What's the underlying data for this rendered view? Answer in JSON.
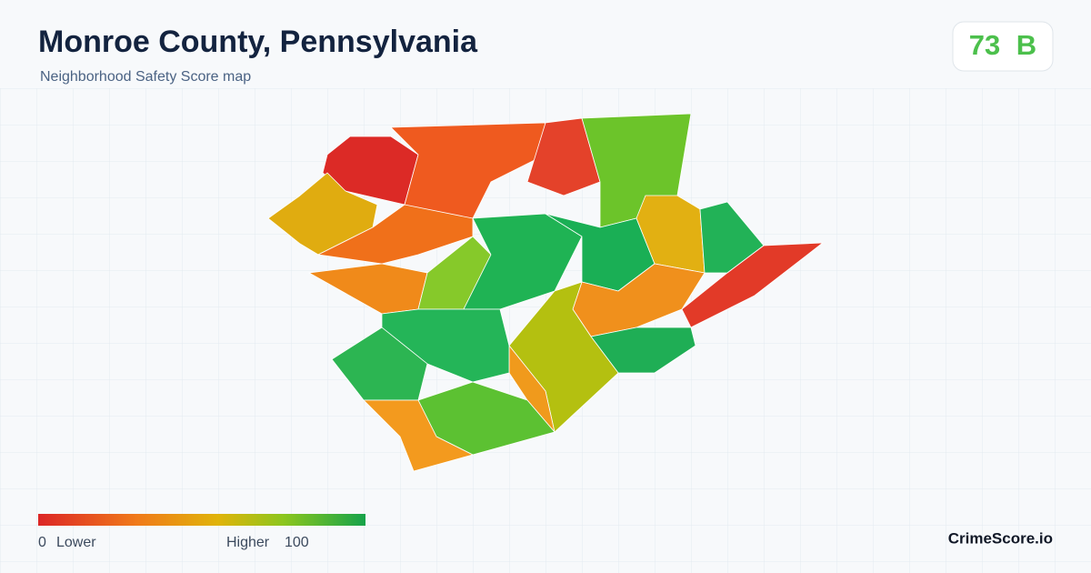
{
  "header": {
    "title": "Monroe County, Pennsylvania",
    "subtitle": "Neighborhood Safety Score map"
  },
  "badge": {
    "score": 73,
    "grade": "B"
  },
  "legend": {
    "min": 0,
    "min_label": "Lower",
    "max_label": "Higher",
    "max": 100
  },
  "footer": {
    "brand": "CrimeScore.io"
  }
}
